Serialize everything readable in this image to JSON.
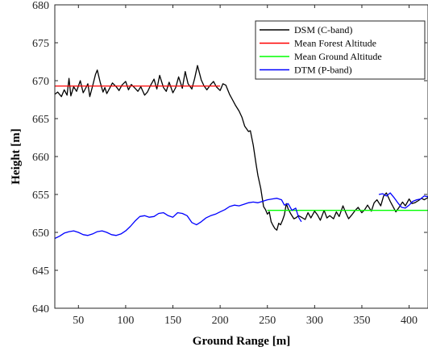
{
  "chart_data": {
    "type": "line",
    "title": "",
    "xlabel": "Ground Range [m]",
    "ylabel": "Height [m]",
    "xlim": [
      25,
      420
    ],
    "ylim": [
      640,
      680
    ],
    "xticks": [
      50,
      100,
      150,
      200,
      250,
      300,
      350,
      400
    ],
    "yticks": [
      640,
      645,
      650,
      655,
      660,
      665,
      670,
      675,
      680
    ],
    "grid": false,
    "legend_position": "top-right",
    "series": [
      {
        "name": "DSM (C-band)",
        "color": "#000000",
        "x": [
          25,
          28,
          32,
          35,
          38,
          40,
          42,
          45,
          48,
          52,
          55,
          58,
          60,
          62,
          65,
          68,
          70,
          73,
          76,
          78,
          80,
          83,
          86,
          90,
          93,
          96,
          100,
          103,
          106,
          110,
          113,
          116,
          120,
          123,
          126,
          130,
          133,
          136,
          140,
          143,
          146,
          150,
          153,
          156,
          160,
          163,
          166,
          170,
          173,
          176,
          180,
          183,
          186,
          190,
          193,
          196,
          200,
          203,
          206,
          210,
          213,
          216,
          220,
          223,
          226,
          230,
          232,
          235,
          238,
          240,
          243,
          246,
          248,
          250,
          252,
          254,
          256,
          258,
          260,
          262,
          264,
          266,
          268,
          270,
          272,
          275,
          278,
          280,
          283,
          286,
          290,
          293,
          296,
          300,
          303,
          306,
          310,
          313,
          316,
          320,
          323,
          326,
          330,
          333,
          336,
          340,
          343,
          346,
          350,
          353,
          356,
          360,
          363,
          366,
          370,
          373,
          376,
          380,
          383,
          386,
          390,
          393,
          396,
          400,
          403,
          406,
          410,
          413,
          416,
          420
        ],
        "y": [
          668.2,
          668.5,
          667.9,
          668.8,
          668.1,
          670.3,
          668.0,
          669.2,
          668.6,
          670.0,
          668.4,
          669.1,
          669.6,
          667.9,
          669.3,
          670.8,
          671.4,
          669.8,
          668.5,
          669.1,
          668.3,
          669.0,
          669.7,
          669.2,
          668.7,
          669.4,
          669.9,
          668.8,
          669.5,
          669.0,
          668.6,
          669.2,
          668.1,
          668.5,
          669.3,
          670.2,
          668.9,
          670.7,
          669.1,
          668.6,
          669.8,
          668.4,
          669.1,
          670.5,
          669.0,
          671.2,
          669.6,
          668.9,
          670.3,
          672.0,
          670.1,
          669.3,
          668.8,
          669.5,
          669.9,
          669.2,
          668.7,
          669.6,
          669.4,
          668.2,
          667.5,
          666.8,
          666.0,
          665.2,
          664.0,
          663.3,
          663.4,
          661.5,
          659.0,
          657.5,
          655.8,
          653.4,
          653.0,
          652.4,
          652.7,
          651.4,
          650.9,
          650.5,
          650.3,
          651.2,
          651.0,
          651.6,
          652.3,
          653.8,
          653.1,
          652.4,
          651.8,
          651.9,
          652.2,
          652.0,
          651.7,
          652.6,
          651.9,
          652.8,
          652.3,
          651.6,
          652.9,
          651.9,
          652.2,
          651.8,
          652.7,
          652.1,
          653.5,
          652.6,
          651.8,
          652.4,
          652.9,
          653.3,
          652.6,
          653.0,
          653.6,
          652.8,
          653.9,
          654.3,
          653.5,
          654.8,
          655.2,
          654.1,
          653.4,
          652.7,
          653.4,
          654.0,
          653.5,
          654.4,
          653.8,
          653.9,
          654.2,
          654.5,
          654.3,
          654.6
        ]
      },
      {
        "name": "Mean Forest Altitude",
        "color": "#ff0000",
        "x": [
          25,
          200
        ],
        "y": [
          669.3,
          669.3
        ]
      },
      {
        "name": "Mean Ground Altitude",
        "color": "#00ff00",
        "x": [
          250,
          420
        ],
        "y": [
          652.9,
          652.9
        ]
      },
      {
        "name": "DTM (P-band)",
        "color": "#0000ff",
        "x": [
          25,
          30,
          35,
          40,
          45,
          50,
          55,
          60,
          65,
          70,
          75,
          80,
          85,
          90,
          95,
          100,
          105,
          110,
          115,
          120,
          125,
          130,
          135,
          140,
          145,
          150,
          155,
          160,
          165,
          170,
          175,
          180,
          185,
          190,
          195,
          200,
          205,
          210,
          215,
          220,
          225,
          230,
          235,
          240,
          245,
          250,
          255,
          260,
          265,
          268,
          272,
          276,
          280,
          283,
          286
        ],
        "y": [
          649.2,
          649.5,
          649.9,
          650.1,
          650.2,
          650.0,
          649.7,
          649.6,
          649.8,
          650.1,
          650.2,
          650.0,
          649.7,
          649.6,
          649.8,
          650.2,
          650.8,
          651.5,
          652.1,
          652.2,
          652.0,
          652.1,
          652.5,
          652.6,
          652.2,
          652.0,
          652.6,
          652.5,
          652.2,
          651.3,
          651.0,
          651.4,
          651.9,
          652.2,
          652.4,
          652.7,
          653.0,
          653.4,
          653.6,
          653.5,
          653.7,
          653.9,
          654.0,
          653.9,
          654.1,
          654.3,
          654.4,
          654.5,
          654.3,
          653.6,
          653.8,
          652.9,
          653.2,
          652.0,
          651.4
        ]
      },
      {
        "name": "",
        "color": "#0000ff",
        "x": [
          368,
          372,
          376,
          380,
          384,
          388,
          392,
          396,
          400,
          404,
          408,
          412,
          416,
          420
        ],
        "y": [
          655.0,
          655.1,
          654.8,
          655.2,
          654.6,
          653.9,
          653.3,
          653.2,
          653.6,
          654.1,
          654.3,
          654.4,
          654.8,
          654.7
        ]
      }
    ]
  }
}
